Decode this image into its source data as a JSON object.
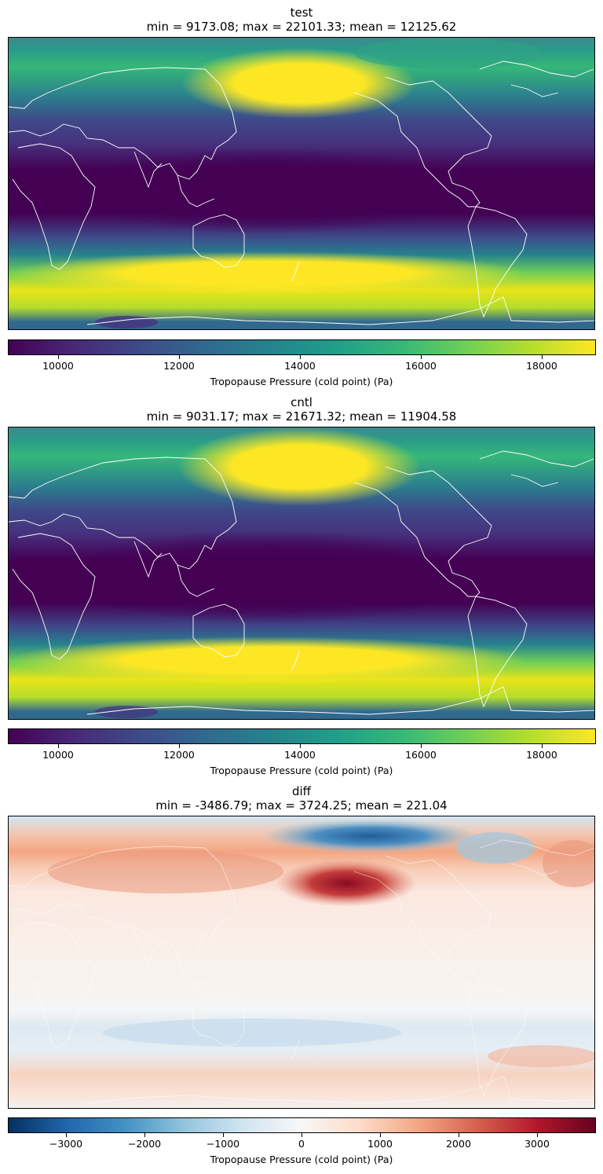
{
  "panels": [
    {
      "name": "test",
      "stats": "min = 9173.08; max = 22101.33; mean = 12125.62",
      "colormap": "viridis",
      "colorbar": {
        "ticks": [
          "10000",
          "12000",
          "14000",
          "16000",
          "18000"
        ],
        "tick_values": [
          10000,
          12000,
          14000,
          16000,
          18000
        ],
        "range": [
          9173.08,
          18900
        ],
        "label": "Tropopause Pressure (cold point) (Pa)"
      }
    },
    {
      "name": "cntl",
      "stats": "min = 9031.17; max = 21671.32; mean = 11904.58",
      "colormap": "viridis",
      "colorbar": {
        "ticks": [
          "10000",
          "12000",
          "14000",
          "16000",
          "18000"
        ],
        "tick_values": [
          10000,
          12000,
          14000,
          16000,
          18000
        ],
        "range": [
          9173.08,
          18900
        ],
        "label": "Tropopause Pressure (cold point) (Pa)"
      }
    },
    {
      "name": "diff",
      "stats": "min = -3486.79; max = 3724.25; mean = 221.04",
      "colormap": "RdBu_r",
      "colorbar": {
        "ticks": [
          "−3000",
          "−2000",
          "−1000",
          "0",
          "1000",
          "2000",
          "3000"
        ],
        "tick_values": [
          -3000,
          -2000,
          -1000,
          0,
          1000,
          2000,
          3000
        ],
        "range": [
          -3724.25,
          3724.25
        ],
        "label": "Tropopause Pressure (cold point) (Pa)"
      }
    }
  ],
  "colors": {
    "coastline": "#ffffff",
    "viridis_stops": [
      "#440154",
      "#482878",
      "#3e4a89",
      "#31688e",
      "#26828e",
      "#1f9e89",
      "#35b779",
      "#6ece58",
      "#b5de2b",
      "#fde725"
    ],
    "rdbu_stops": [
      "#053061",
      "#2166ac",
      "#4393c3",
      "#92c5de",
      "#d1e5f0",
      "#f7f7f7",
      "#fddbc7",
      "#f4a582",
      "#d6604d",
      "#b2182b",
      "#67001f"
    ]
  }
}
